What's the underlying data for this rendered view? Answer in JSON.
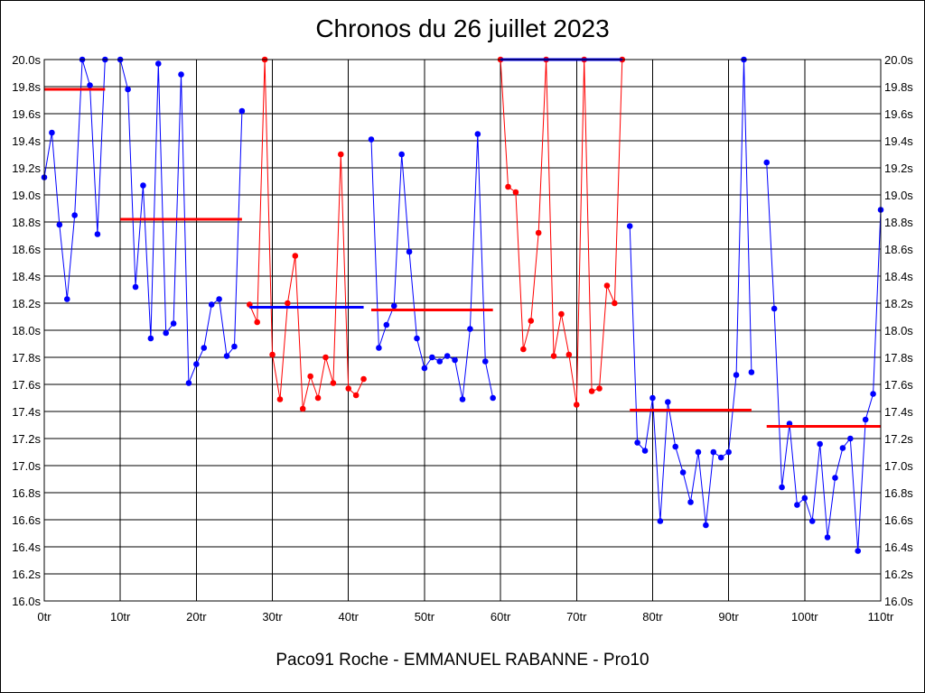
{
  "chart_data": {
    "type": "line",
    "title": "Chronos du 26 juillet 2023",
    "caption": "Paco91 Roche - EMMANUEL RABANNE - Pro10",
    "xlim": [
      0,
      110
    ],
    "ylim": [
      16.0,
      20.0
    ],
    "grid": true,
    "x_ticks": [
      0,
      10,
      20,
      30,
      40,
      50,
      60,
      70,
      80,
      90,
      100,
      110
    ],
    "x_tick_labels": [
      "0tr",
      "10tr",
      "20tr",
      "30tr",
      "40tr",
      "50tr",
      "60tr",
      "70tr",
      "80tr",
      "90tr",
      "100tr",
      "110tr"
    ],
    "y_ticks": [
      16.0,
      16.2,
      16.4,
      16.6,
      16.8,
      17.0,
      17.2,
      17.4,
      17.6,
      17.8,
      18.0,
      18.2,
      18.4,
      18.6,
      18.8,
      19.0,
      19.2,
      19.4,
      19.6,
      19.8,
      20.0
    ],
    "y_tick_labels": [
      "16.0s",
      "16.2s",
      "16.4s",
      "16.6s",
      "16.8s",
      "17.0s",
      "17.2s",
      "17.4s",
      "17.6s",
      "17.8s",
      "18.0s",
      "18.2s",
      "18.4s",
      "18.6s",
      "18.8s",
      "19.0s",
      "19.2s",
      "19.4s",
      "19.6s",
      "19.8s",
      "20.0s"
    ],
    "colors": {
      "blue": "#0000ff",
      "red": "#ff0000",
      "grid": "#000000"
    },
    "series": [
      {
        "color": "blue",
        "points": [
          [
            0,
            19.13
          ],
          [
            1,
            19.46
          ],
          [
            2,
            18.78
          ],
          [
            3,
            18.23
          ],
          [
            4,
            18.85
          ],
          [
            5,
            20.0
          ],
          [
            6,
            19.81
          ],
          [
            7,
            18.71
          ],
          [
            8,
            20.0
          ]
        ]
      },
      {
        "color": "blue",
        "points": [
          [
            10,
            20.0
          ],
          [
            11,
            19.78
          ],
          [
            12,
            18.32
          ],
          [
            13,
            19.07
          ],
          [
            14,
            17.94
          ],
          [
            15,
            19.97
          ],
          [
            16,
            17.98
          ],
          [
            17,
            18.05
          ],
          [
            18,
            19.89
          ],
          [
            19,
            17.61
          ],
          [
            20,
            17.75
          ],
          [
            21,
            17.87
          ],
          [
            22,
            18.19
          ],
          [
            23,
            18.23
          ],
          [
            24,
            17.81
          ],
          [
            25,
            17.88
          ],
          [
            26,
            19.62
          ]
        ]
      },
      {
        "color": "red",
        "points": [
          [
            27,
            18.19
          ],
          [
            28,
            18.06
          ],
          [
            29,
            20.0
          ],
          [
            30,
            17.82
          ],
          [
            31,
            17.49
          ],
          [
            32,
            18.2
          ],
          [
            33,
            18.55
          ],
          [
            34,
            17.42
          ],
          [
            35,
            17.66
          ],
          [
            36,
            17.5
          ],
          [
            37,
            17.8
          ],
          [
            38,
            17.61
          ],
          [
            39,
            19.3
          ],
          [
            40,
            17.57
          ],
          [
            41,
            17.52
          ],
          [
            42,
            17.64
          ]
        ]
      },
      {
        "color": "blue",
        "points": [
          [
            43,
            19.41
          ],
          [
            44,
            17.87
          ],
          [
            45,
            18.04
          ],
          [
            46,
            18.18
          ],
          [
            47,
            19.3
          ],
          [
            48,
            18.58
          ],
          [
            49,
            17.94
          ],
          [
            50,
            17.72
          ],
          [
            51,
            17.8
          ],
          [
            52,
            17.77
          ],
          [
            53,
            17.81
          ],
          [
            54,
            17.78
          ],
          [
            55,
            17.49
          ],
          [
            56,
            18.01
          ],
          [
            57,
            19.45
          ],
          [
            58,
            17.77
          ],
          [
            59,
            17.5
          ]
        ]
      },
      {
        "color": "red",
        "points": [
          [
            60,
            20.0
          ],
          [
            61,
            19.06
          ],
          [
            62,
            19.02
          ],
          [
            63,
            17.86
          ],
          [
            64,
            18.07
          ],
          [
            65,
            18.72
          ],
          [
            66,
            20.0
          ],
          [
            67,
            17.81
          ],
          [
            68,
            18.12
          ],
          [
            69,
            17.82
          ],
          [
            70,
            17.45
          ],
          [
            71,
            20.0
          ],
          [
            72,
            17.55
          ],
          [
            73,
            17.57
          ],
          [
            74,
            18.33
          ],
          [
            75,
            18.2
          ],
          [
            76,
            20.0
          ]
        ]
      },
      {
        "color": "blue",
        "points": [
          [
            77,
            18.77
          ],
          [
            78,
            17.17
          ],
          [
            79,
            17.11
          ],
          [
            80,
            17.5
          ],
          [
            81,
            16.59
          ],
          [
            82,
            17.47
          ],
          [
            83,
            17.14
          ],
          [
            84,
            16.95
          ],
          [
            85,
            16.73
          ],
          [
            86,
            17.1
          ],
          [
            87,
            16.56
          ],
          [
            88,
            17.1
          ],
          [
            89,
            17.06
          ],
          [
            90,
            17.1
          ],
          [
            91,
            17.67
          ],
          [
            92,
            20.0
          ],
          [
            93,
            17.69
          ]
        ]
      },
      {
        "color": "blue",
        "points": [
          [
            95,
            19.24
          ],
          [
            96,
            18.16
          ],
          [
            97,
            16.84
          ],
          [
            98,
            17.31
          ],
          [
            99,
            16.71
          ],
          [
            100,
            16.76
          ],
          [
            101,
            16.59
          ],
          [
            102,
            17.16
          ],
          [
            103,
            16.47
          ],
          [
            104,
            16.91
          ],
          [
            105,
            17.13
          ],
          [
            106,
            17.2
          ],
          [
            107,
            16.37
          ],
          [
            108,
            17.34
          ],
          [
            109,
            17.53
          ],
          [
            110,
            18.89
          ]
        ]
      }
    ],
    "averages": [
      {
        "color": "red",
        "x": [
          0,
          8
        ],
        "y": 19.78
      },
      {
        "color": "red",
        "x": [
          10,
          26
        ],
        "y": 18.82
      },
      {
        "color": "blue",
        "x": [
          27,
          42
        ],
        "y": 18.17
      },
      {
        "color": "red",
        "x": [
          43,
          59
        ],
        "y": 18.15
      },
      {
        "color": "blue",
        "x": [
          60,
          76
        ],
        "y": 20.0
      },
      {
        "color": "red",
        "x": [
          77,
          93
        ],
        "y": 17.41
      },
      {
        "color": "red",
        "x": [
          95,
          110
        ],
        "y": 17.29
      }
    ]
  }
}
